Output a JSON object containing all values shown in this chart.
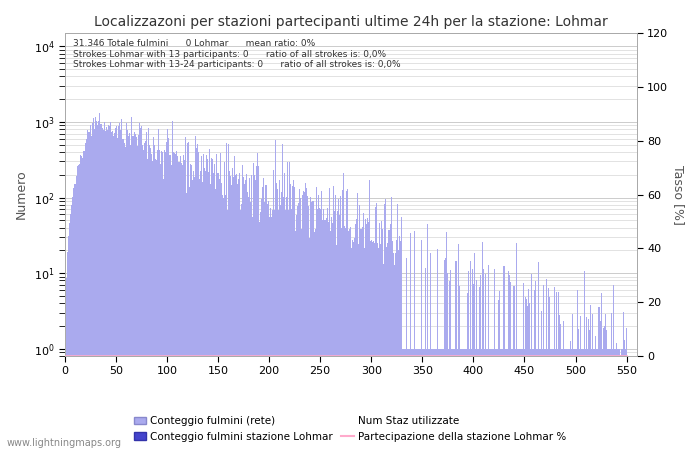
{
  "title": "Localizzazoni per stazioni partecipanti ultime 24h per la stazione: Lohmar",
  "xlabel": "",
  "ylabel_left": "Numero",
  "ylabel_right": "Tasso [%]",
  "annotation_lines": [
    "31.346 Totale fulmini      0 Lohmar      mean ratio: 0%",
    "Strokes Lohmar with 13 participants: 0      ratio of all strokes is: 0,0%",
    "Strokes Lohmar with 13-24 participants: 0      ratio of all strokes is: 0,0%"
  ],
  "xlim": [
    0,
    560
  ],
  "ylim_left": [
    0.8,
    15000
  ],
  "ylim_right": [
    0,
    120
  ],
  "grid_color": "#cccccc",
  "bar_color": "#aaaaee",
  "station_bar_color": "#4444cc",
  "participation_line_color": "#ffaacc",
  "background_color": "#ffffff",
  "legend_labels": [
    "Conteggio fulmini (rete)",
    "Conteggio fulmini stazione Lohmar",
    "Num Staz utilizzate",
    "Partecipazione della stazione Lohmar %"
  ],
  "watermark": "www.lightningmaps.org",
  "x_ticks": [
    0,
    50,
    100,
    150,
    200,
    250,
    300,
    350,
    400,
    450,
    500,
    550
  ],
  "y_right_ticks": [
    0,
    20,
    40,
    60,
    80,
    100,
    120
  ],
  "num_bars": 550,
  "seed": 42
}
